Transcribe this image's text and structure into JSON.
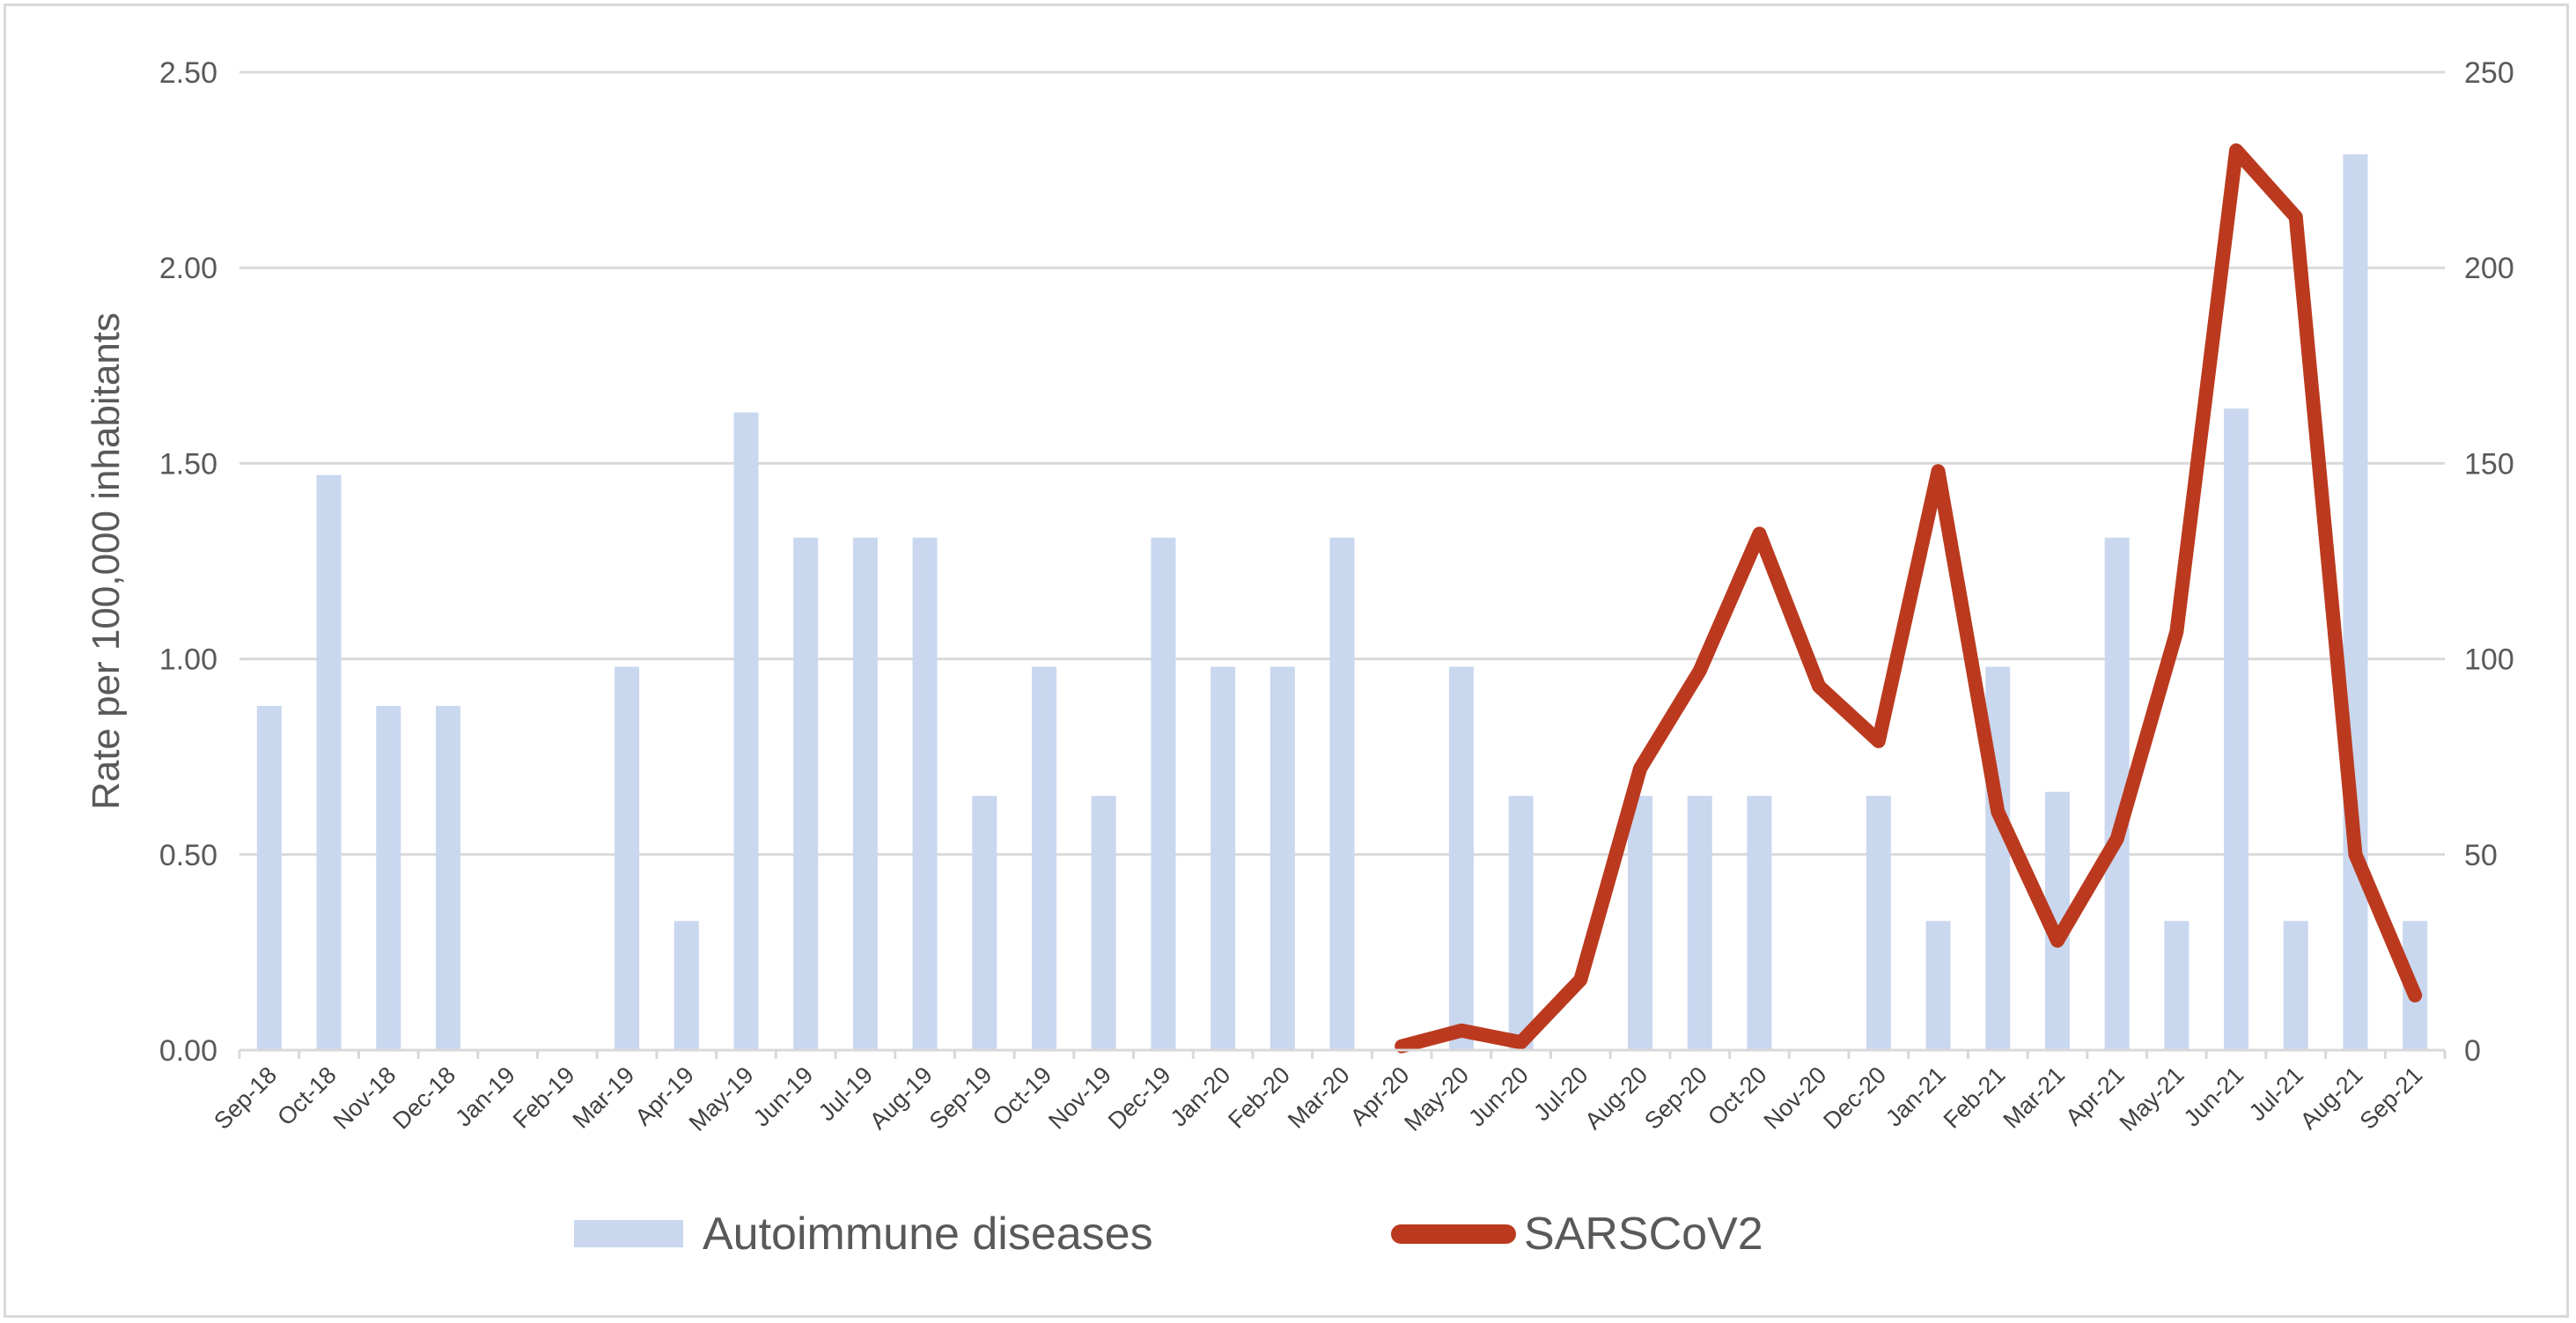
{
  "chart_data": {
    "type": "bar",
    "title": "",
    "ylabel": "Rate per 100,000 inhabitants",
    "y2label": "",
    "ylim": [
      0,
      2.5
    ],
    "y2lim": [
      0,
      250
    ],
    "yticks": [
      "0.00",
      "0.50",
      "1.00",
      "1.50",
      "2.00",
      "2.50"
    ],
    "y2ticks": [
      "0",
      "50",
      "100",
      "150",
      "200",
      "250"
    ],
    "grid": true,
    "legend_position": "bottom",
    "categories": [
      "Sep-18",
      "Oct-18",
      "Nov-18",
      "Dec-18",
      "Jan-19",
      "Feb-19",
      "Mar-19",
      "Apr-19",
      "May-19",
      "Jun-19",
      "Jul-19",
      "Aug-19",
      "Sep-19",
      "Oct-19",
      "Nov-19",
      "Dec-19",
      "Jan-20",
      "Feb-20",
      "Mar-20",
      "Apr-20",
      "May-20",
      "Jun-20",
      "Jul-20",
      "Aug-20",
      "Sep-20",
      "Oct-20",
      "Nov-20",
      "Dec-20",
      "Jan-21",
      "Feb-21",
      "Mar-21",
      "Apr-21",
      "May-21",
      "Jun-21",
      "Jul-21",
      "Aug-21",
      "Sep-21"
    ],
    "series": [
      {
        "name": "Autoimmune diseases",
        "type": "bar",
        "axis": "left",
        "color": "#c9d7ef",
        "values": [
          0.88,
          1.47,
          0.88,
          0.88,
          0,
          0,
          0.98,
          0.33,
          1.63,
          1.31,
          1.31,
          1.31,
          0.65,
          0.98,
          0.65,
          1.31,
          0.98,
          0.98,
          1.31,
          0,
          0.98,
          0.65,
          0,
          0.65,
          0.65,
          0.65,
          0,
          0.65,
          0.33,
          0.98,
          0.66,
          1.31,
          0.33,
          1.64,
          0.33,
          2.29,
          0.33
        ]
      },
      {
        "name": "SARSCoV2",
        "type": "line",
        "axis": "right",
        "color": "#bb3a1f",
        "values": [
          null,
          null,
          null,
          null,
          null,
          null,
          null,
          null,
          null,
          null,
          null,
          null,
          null,
          null,
          null,
          null,
          null,
          null,
          null,
          1,
          5,
          2,
          18,
          72,
          97,
          132,
          93,
          79,
          148,
          61,
          28,
          54,
          107,
          230,
          213,
          50,
          14
        ]
      }
    ]
  }
}
